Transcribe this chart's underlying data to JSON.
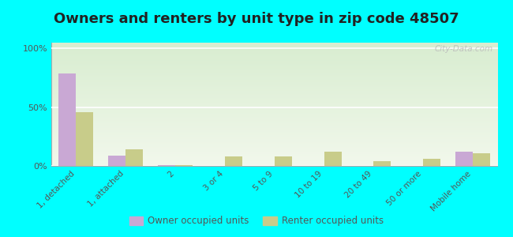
{
  "title": "Owners and renters by unit type in zip code 48507",
  "categories": [
    "1, detached",
    "1, attached",
    "2",
    "3 or 4",
    "5 to 9",
    "10 to 19",
    "20 to 49",
    "50 or more",
    "Mobile home"
  ],
  "owner_values": [
    79,
    9,
    0.5,
    0,
    0,
    0,
    0,
    0,
    12
  ],
  "renter_values": [
    46,
    14,
    1,
    8,
    8,
    12,
    4,
    6,
    11
  ],
  "owner_color": "#c9a8d4",
  "renter_color": "#c8cc8a",
  "background_color": "#00ffff",
  "grad_top": "#d8edd0",
  "grad_bottom": "#f2f8ec",
  "yticks": [
    0,
    50,
    100
  ],
  "ylim": [
    0,
    105
  ],
  "title_fontsize": 13,
  "watermark": "City-Data.com",
  "legend_owner": "Owner occupied units",
  "legend_renter": "Renter occupied units"
}
